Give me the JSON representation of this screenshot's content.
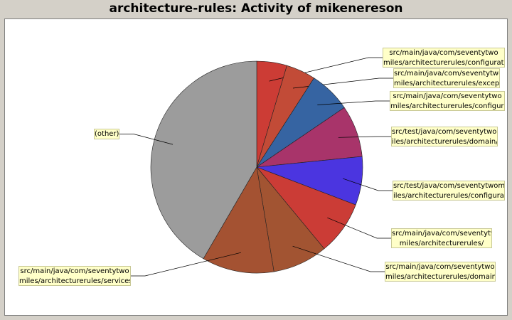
{
  "chart_data": {
    "type": "pie",
    "title": "architecture-rules: Activity of mikenereson",
    "slices": [
      {
        "label": [
          "src/main/java/com/seventytwo",
          "miles/architecturerules/configuration/"
        ],
        "value": 4.6,
        "color": "#cc3c35"
      },
      {
        "label": [
          "src/main/java/com/seventytwo",
          "miles/architecturerules/exceptions/"
        ],
        "value": 4.5,
        "color": "#c24b37"
      },
      {
        "label": [
          "src/main/java/com/seventytwo",
          "miles/architecturerules/configuration/"
        ],
        "value": 6.4,
        "color": "#3664a2"
      },
      {
        "label": [
          "src/test/java/com/seventytwom",
          "iles/architecturerules/domain/"
        ],
        "value": 7.9,
        "color": "#a8346a"
      },
      {
        "label": [
          "src/test/java/com/seventytwom",
          "iles/architecturerules/configuration/"
        ],
        "value": 7.4,
        "color": "#4b35e0"
      },
      {
        "label": [
          "src/main/java/com/seventytwo",
          "miles/architecturerules/"
        ],
        "value": 8.2,
        "color": "#cb3c36"
      },
      {
        "label": [
          "src/main/java/com/seventytwo",
          "miles/architecturerules/domain/"
        ],
        "value": 8.4,
        "color": "#a25432"
      },
      {
        "label": [
          "src/main/java/com/seventytwo",
          "miles/architecturerules/services/"
        ],
        "value": 11.0,
        "color": "#a45232"
      },
      {
        "label": [
          "(other)"
        ],
        "value": 41.6,
        "color": "#9c9c9c"
      }
    ]
  }
}
